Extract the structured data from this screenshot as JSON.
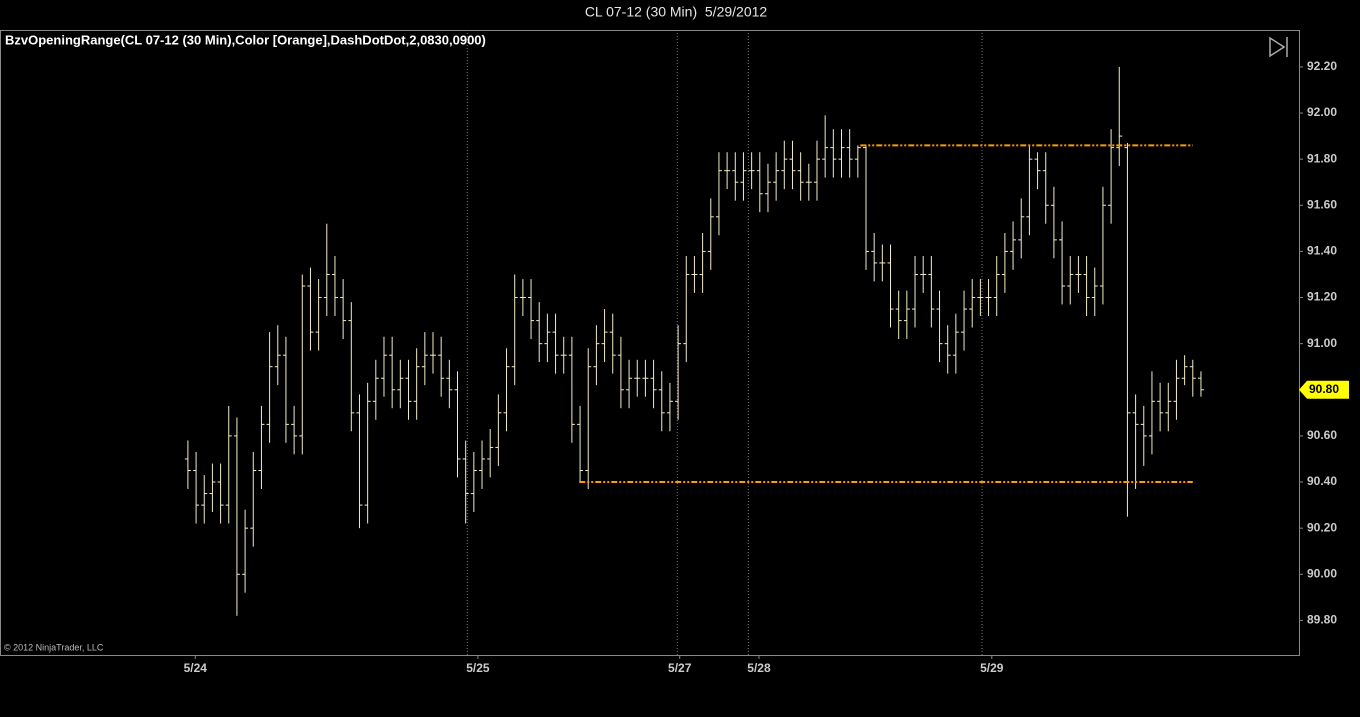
{
  "chart_data": {
    "type": "ohlc",
    "title": "CL 07-12 (30 Min)  5/29/2012",
    "indicator_label": "BzvOpeningRange(CL 07-12 (30 Min),Color [Orange],DashDotDot,2,0830,0900)",
    "copyright": "© 2012 NinjaTrader, LLC",
    "color": "#f2ecc8",
    "x": [
      0,
      1,
      2,
      3,
      4,
      5,
      6,
      7,
      8,
      9,
      10,
      11,
      12,
      13,
      14,
      15,
      16,
      17,
      18,
      19,
      20,
      21,
      22,
      23,
      24,
      25,
      26,
      27,
      28,
      29,
      30,
      31,
      32,
      33,
      34,
      35,
      36,
      37,
      38,
      39,
      40,
      41,
      42,
      43,
      44,
      45,
      46,
      47,
      48,
      49,
      50,
      51,
      52,
      53,
      54,
      55,
      56,
      57,
      58,
      59,
      60,
      61,
      62,
      63,
      64,
      65,
      66,
      67,
      68,
      69,
      70,
      71,
      72,
      73,
      74,
      75,
      76,
      77,
      78,
      79,
      80,
      81,
      82,
      83,
      84,
      85,
      86,
      87,
      88,
      89,
      90,
      91,
      92,
      93,
      94,
      95,
      96,
      97,
      98,
      99,
      100,
      101,
      102,
      103,
      104,
      105,
      106,
      107,
      108,
      109,
      110,
      111,
      112,
      113,
      114,
      115,
      116,
      117,
      118,
      119,
      120,
      121,
      122,
      123,
      124
    ],
    "open": [
      90.5,
      90.45,
      90.3,
      90.35,
      90.4,
      90.3,
      90.6,
      90.0,
      90.2,
      90.45,
      90.65,
      90.9,
      90.95,
      90.65,
      90.6,
      91.25,
      91.05,
      91.2,
      91.3,
      91.2,
      91.1,
      90.7,
      90.3,
      90.75,
      90.85,
      90.95,
      90.8,
      90.85,
      90.75,
      90.9,
      90.95,
      90.95,
      90.85,
      90.8,
      90.5,
      90.35,
      90.45,
      90.5,
      90.55,
      90.7,
      90.9,
      91.2,
      91.2,
      91.1,
      91.0,
      91.05,
      90.95,
      90.95,
      90.65,
      90.45,
      90.9,
      91.0,
      91.05,
      90.95,
      90.8,
      90.85,
      90.85,
      90.85,
      90.8,
      90.7,
      90.75,
      91.0,
      91.3,
      91.3,
      91.4,
      91.55,
      91.75,
      91.75,
      91.7,
      91.75,
      91.75,
      91.65,
      91.7,
      91.75,
      91.8,
      91.75,
      91.7,
      91.7,
      91.8,
      91.85,
      91.8,
      91.85,
      91.8,
      91.85,
      91.4,
      91.35,
      91.35,
      91.15,
      91.1,
      91.15,
      91.3,
      91.3,
      91.15,
      91.0,
      90.95,
      91.05,
      91.15,
      91.2,
      91.2,
      91.2,
      91.3,
      91.4,
      91.45,
      91.55,
      91.8,
      91.75,
      91.6,
      91.45,
      91.25,
      91.3,
      91.3,
      91.2,
      91.25,
      91.6,
      91.85,
      91.85,
      90.7,
      90.65,
      90.6,
      90.75,
      90.7,
      90.75,
      90.85,
      90.9,
      90.85
    ],
    "high": [
      90.58,
      90.53,
      90.43,
      90.48,
      90.48,
      90.73,
      90.68,
      90.28,
      90.53,
      90.73,
      91.05,
      91.08,
      91.03,
      90.73,
      91.3,
      91.33,
      91.28,
      91.52,
      91.38,
      91.28,
      91.18,
      90.78,
      90.83,
      90.93,
      91.03,
      91.03,
      90.93,
      90.93,
      90.98,
      91.05,
      91.05,
      91.03,
      90.93,
      90.88,
      90.58,
      90.53,
      90.58,
      90.63,
      90.78,
      90.98,
      91.3,
      91.28,
      91.28,
      91.18,
      91.13,
      91.13,
      91.03,
      91.03,
      90.73,
      90.98,
      91.08,
      91.15,
      91.13,
      91.03,
      90.93,
      90.93,
      90.93,
      90.93,
      90.88,
      90.83,
      91.08,
      91.38,
      91.38,
      91.48,
      91.63,
      91.83,
      91.83,
      91.83,
      91.83,
      91.83,
      91.83,
      91.78,
      91.83,
      91.88,
      91.88,
      91.83,
      91.78,
      91.88,
      91.99,
      91.93,
      91.93,
      91.93,
      91.86,
      91.86,
      91.48,
      91.43,
      91.43,
      91.23,
      91.23,
      91.38,
      91.38,
      91.38,
      91.23,
      91.08,
      91.13,
      91.23,
      91.28,
      91.28,
      91.28,
      91.38,
      91.48,
      91.53,
      91.63,
      91.86,
      91.83,
      91.83,
      91.68,
      91.53,
      91.38,
      91.38,
      91.38,
      91.33,
      91.68,
      91.93,
      92.2,
      91.87,
      90.78,
      90.73,
      90.88,
      90.83,
      90.83,
      90.93,
      90.95,
      90.93,
      90.88
    ],
    "low": [
      90.37,
      90.22,
      90.22,
      90.27,
      90.22,
      90.22,
      89.82,
      89.92,
      90.12,
      90.37,
      90.57,
      90.82,
      90.57,
      90.52,
      90.52,
      90.97,
      90.97,
      91.12,
      91.12,
      91.02,
      90.62,
      90.2,
      90.22,
      90.67,
      90.77,
      90.72,
      90.72,
      90.67,
      90.67,
      90.82,
      90.87,
      90.77,
      90.72,
      90.42,
      90.22,
      90.27,
      90.37,
      90.42,
      90.47,
      90.62,
      90.82,
      91.12,
      91.02,
      90.92,
      90.92,
      90.87,
      90.87,
      90.57,
      90.4,
      90.37,
      90.82,
      90.92,
      90.87,
      90.72,
      90.72,
      90.77,
      90.77,
      90.72,
      90.62,
      90.62,
      90.67,
      90.92,
      91.22,
      91.22,
      91.32,
      91.47,
      91.67,
      91.62,
      91.62,
      91.67,
      91.57,
      91.57,
      91.62,
      91.67,
      91.67,
      91.62,
      91.62,
      91.62,
      91.72,
      91.72,
      91.72,
      91.72,
      91.72,
      91.32,
      91.27,
      91.27,
      91.07,
      91.02,
      91.02,
      91.07,
      91.22,
      91.07,
      90.92,
      90.87,
      90.87,
      90.97,
      91.07,
      91.12,
      91.12,
      91.12,
      91.22,
      91.32,
      91.37,
      91.47,
      91.67,
      91.52,
      91.37,
      91.17,
      91.17,
      91.22,
      91.12,
      91.12,
      91.17,
      91.52,
      91.77,
      90.25,
      90.37,
      90.47,
      90.52,
      90.62,
      90.62,
      90.67,
      90.82,
      90.77,
      90.77
    ],
    "close": [
      90.45,
      90.3,
      90.35,
      90.4,
      90.3,
      90.6,
      90.0,
      90.2,
      90.45,
      90.65,
      90.9,
      90.95,
      90.65,
      90.6,
      91.25,
      91.05,
      91.2,
      91.3,
      91.2,
      91.1,
      90.7,
      90.3,
      90.75,
      90.85,
      90.95,
      90.8,
      90.85,
      90.75,
      90.9,
      90.95,
      90.95,
      90.85,
      90.8,
      90.5,
      90.35,
      90.45,
      90.5,
      90.55,
      90.7,
      90.9,
      91.2,
      91.2,
      91.1,
      91.0,
      91.05,
      90.95,
      90.95,
      90.65,
      90.45,
      90.9,
      91.0,
      91.05,
      90.95,
      90.8,
      90.85,
      90.85,
      90.85,
      90.8,
      90.7,
      90.75,
      91.0,
      91.3,
      91.3,
      91.4,
      91.55,
      91.75,
      91.75,
      91.7,
      91.75,
      91.75,
      91.65,
      91.7,
      91.75,
      91.8,
      91.75,
      91.7,
      91.7,
      91.8,
      91.85,
      91.8,
      91.85,
      91.8,
      91.85,
      91.4,
      91.35,
      91.35,
      91.15,
      91.1,
      91.15,
      91.3,
      91.3,
      91.15,
      91.0,
      90.95,
      91.05,
      91.15,
      91.2,
      91.2,
      91.2,
      91.3,
      91.4,
      91.45,
      91.55,
      91.8,
      91.75,
      91.6,
      91.45,
      91.25,
      91.3,
      91.3,
      91.2,
      91.25,
      91.6,
      91.85,
      91.9,
      90.7,
      90.65,
      90.6,
      90.75,
      90.7,
      90.75,
      90.85,
      90.9,
      90.85,
      90.8
    ],
    "xlim": [
      -23,
      136
    ],
    "xticks": [
      {
        "value": 0.9,
        "label": "5/24"
      },
      {
        "value": 35.5,
        "label": "5/25"
      },
      {
        "value": 60.2,
        "label": "5/27"
      },
      {
        "value": 69.9,
        "label": "5/28"
      },
      {
        "value": 98.4,
        "label": "5/29"
      }
    ],
    "session_breaks": [
      34.2,
      59.9,
      68.6,
      97.2
    ],
    "ylim": [
      89.65,
      92.36
    ],
    "yticks": [
      {
        "value": 89.8,
        "label": "89.80"
      },
      {
        "value": 90.0,
        "label": "90.00"
      },
      {
        "value": 90.2,
        "label": "90.20"
      },
      {
        "value": 90.4,
        "label": "90.40"
      },
      {
        "value": 90.6,
        "label": "90.60"
      },
      {
        "value": 91.0,
        "label": "91.00"
      },
      {
        "value": 91.2,
        "label": "91.20"
      },
      {
        "value": 91.4,
        "label": "91.40"
      },
      {
        "value": 91.6,
        "label": "91.60"
      },
      {
        "value": 91.8,
        "label": "91.80"
      },
      {
        "value": 92.0,
        "label": "92.00"
      },
      {
        "value": 92.2,
        "label": "92.20"
      }
    ],
    "opening_range": {
      "high": 91.86,
      "low": 90.4,
      "high_start": 82.3,
      "low_start": 47.9,
      "end": 123,
      "color": "#ff9900"
    },
    "last_price": {
      "value": 90.8,
      "label": "90.80",
      "color": "#ffff00"
    }
  }
}
